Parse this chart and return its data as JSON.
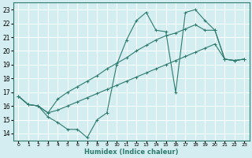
{
  "title": "",
  "xlabel": "Humidex (Indice chaleur)",
  "xlim": [
    -0.5,
    23.5
  ],
  "ylim": [
    13.5,
    23.5
  ],
  "xticks": [
    0,
    1,
    2,
    3,
    4,
    5,
    6,
    7,
    8,
    9,
    10,
    11,
    12,
    13,
    14,
    15,
    16,
    17,
    18,
    19,
    20,
    21,
    22,
    23
  ],
  "yticks": [
    14,
    15,
    16,
    17,
    18,
    19,
    20,
    21,
    22,
    23
  ],
  "bg_color": "#d4edf0",
  "grid_color": "#b8d8dc",
  "line_color": "#2d7b6e",
  "line1_x": [
    0,
    1,
    2,
    3,
    4,
    5,
    6,
    7,
    8,
    9,
    10,
    11,
    12,
    13,
    14,
    15,
    16,
    17,
    18,
    19,
    20,
    21,
    22,
    23
  ],
  "line1_y": [
    16.7,
    16.1,
    16.0,
    15.2,
    14.8,
    14.3,
    14.3,
    13.7,
    15.0,
    15.5,
    19.0,
    20.8,
    22.2,
    22.8,
    21.5,
    21.4,
    17.0,
    22.8,
    23.0,
    22.2,
    21.5,
    19.4,
    19.3,
    19.4
  ],
  "line2_x": [
    0,
    1,
    2,
    3,
    4,
    5,
    6,
    7,
    8,
    9,
    10,
    11,
    12,
    13,
    14,
    15,
    16,
    17,
    18,
    19,
    20,
    21,
    22,
    23
  ],
  "line2_y": [
    16.7,
    16.1,
    16.0,
    15.5,
    16.5,
    17.0,
    17.4,
    17.8,
    18.2,
    18.7,
    19.1,
    19.5,
    20.0,
    20.4,
    20.8,
    21.1,
    21.3,
    21.6,
    21.9,
    21.5,
    21.5,
    19.4,
    19.3,
    19.4
  ],
  "line3_x": [
    0,
    1,
    2,
    3,
    4,
    5,
    6,
    7,
    8,
    9,
    10,
    11,
    12,
    13,
    14,
    15,
    16,
    17,
    18,
    19,
    20,
    21,
    22,
    23
  ],
  "line3_y": [
    16.7,
    16.1,
    16.0,
    15.5,
    15.7,
    16.0,
    16.3,
    16.6,
    16.9,
    17.2,
    17.5,
    17.8,
    18.1,
    18.4,
    18.7,
    19.0,
    19.3,
    19.6,
    19.9,
    20.2,
    20.5,
    19.4,
    19.3,
    19.4
  ]
}
